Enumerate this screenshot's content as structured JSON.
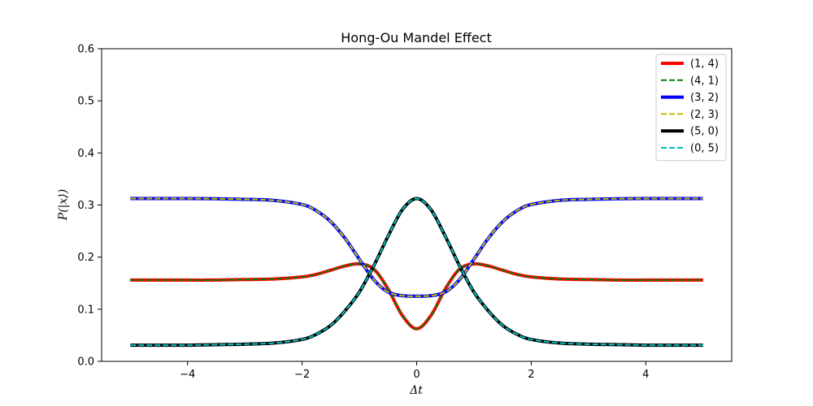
{
  "chart_data": {
    "type": "line",
    "title": "Hong-Ou Mandel Effect",
    "xlabel": "Δt",
    "ylabel": "P(|x⟩)",
    "xlim": [
      -5.5,
      5.5
    ],
    "ylim": [
      0.0,
      0.6
    ],
    "xticks": [
      -4,
      -2,
      0,
      2,
      4
    ],
    "xtick_labels": [
      "−4",
      "−2",
      "0",
      "2",
      "4"
    ],
    "yticks": [
      0.0,
      0.1,
      0.2,
      0.3,
      0.4,
      0.5,
      0.6
    ],
    "ytick_labels": [
      "0.0",
      "0.1",
      "0.2",
      "0.3",
      "0.4",
      "0.5",
      "0.6"
    ],
    "grid": false,
    "legend_position": "top-right",
    "x": [
      -5,
      -4.5,
      -4,
      -3.5,
      -3,
      -2.5,
      -2,
      -1.75,
      -1.5,
      -1.25,
      -1,
      -0.75,
      -0.5,
      -0.25,
      0,
      0.25,
      0.5,
      0.75,
      1,
      1.25,
      1.5,
      1.75,
      2,
      2.5,
      3,
      3.5,
      4,
      4.5,
      5
    ],
    "series": [
      {
        "name": "(1, 4)",
        "color": "#ff0000",
        "style": "solid",
        "width": 4,
        "values": [
          0.156,
          0.156,
          0.156,
          0.156,
          0.157,
          0.158,
          0.162,
          0.167,
          0.175,
          0.183,
          0.187,
          0.177,
          0.139,
          0.088,
          0.0625,
          0.088,
          0.139,
          0.177,
          0.187,
          0.183,
          0.175,
          0.167,
          0.162,
          0.158,
          0.157,
          0.156,
          0.156,
          0.156,
          0.156
        ]
      },
      {
        "name": "(4, 1)",
        "color": "#008000",
        "style": "dashed",
        "width": 2,
        "values": [
          0.156,
          0.156,
          0.156,
          0.156,
          0.157,
          0.158,
          0.162,
          0.167,
          0.175,
          0.183,
          0.187,
          0.177,
          0.139,
          0.088,
          0.0625,
          0.088,
          0.139,
          0.177,
          0.187,
          0.183,
          0.175,
          0.167,
          0.162,
          0.158,
          0.157,
          0.156,
          0.156,
          0.156,
          0.156
        ]
      },
      {
        "name": "(3, 2)",
        "color": "#0000ff",
        "style": "solid",
        "width": 4,
        "values": [
          0.3125,
          0.3125,
          0.3125,
          0.312,
          0.311,
          0.309,
          0.301,
          0.289,
          0.268,
          0.236,
          0.196,
          0.157,
          0.133,
          0.126,
          0.125,
          0.126,
          0.133,
          0.157,
          0.196,
          0.236,
          0.268,
          0.289,
          0.301,
          0.309,
          0.311,
          0.312,
          0.3125,
          0.3125,
          0.3125
        ]
      },
      {
        "name": "(2, 3)",
        "color": "#bfbf00",
        "style": "dashed",
        "width": 2,
        "values": [
          0.3125,
          0.3125,
          0.3125,
          0.312,
          0.311,
          0.309,
          0.301,
          0.289,
          0.268,
          0.236,
          0.196,
          0.157,
          0.133,
          0.126,
          0.125,
          0.126,
          0.133,
          0.157,
          0.196,
          0.236,
          0.268,
          0.289,
          0.301,
          0.309,
          0.311,
          0.312,
          0.3125,
          0.3125,
          0.3125
        ]
      },
      {
        "name": "(5, 0)",
        "color": "#000000",
        "style": "solid",
        "width": 4,
        "values": [
          0.031,
          0.031,
          0.031,
          0.032,
          0.033,
          0.035,
          0.042,
          0.052,
          0.069,
          0.097,
          0.133,
          0.183,
          0.24,
          0.291,
          0.3125,
          0.291,
          0.24,
          0.183,
          0.133,
          0.097,
          0.069,
          0.052,
          0.042,
          0.035,
          0.033,
          0.032,
          0.031,
          0.031,
          0.031
        ]
      },
      {
        "name": "(0, 5)",
        "color": "#00bfbf",
        "style": "dashed",
        "width": 2,
        "values": [
          0.031,
          0.031,
          0.031,
          0.032,
          0.033,
          0.035,
          0.042,
          0.052,
          0.069,
          0.097,
          0.133,
          0.183,
          0.24,
          0.291,
          0.3125,
          0.291,
          0.24,
          0.183,
          0.133,
          0.097,
          0.069,
          0.052,
          0.042,
          0.035,
          0.033,
          0.032,
          0.031,
          0.031,
          0.031
        ]
      }
    ]
  }
}
